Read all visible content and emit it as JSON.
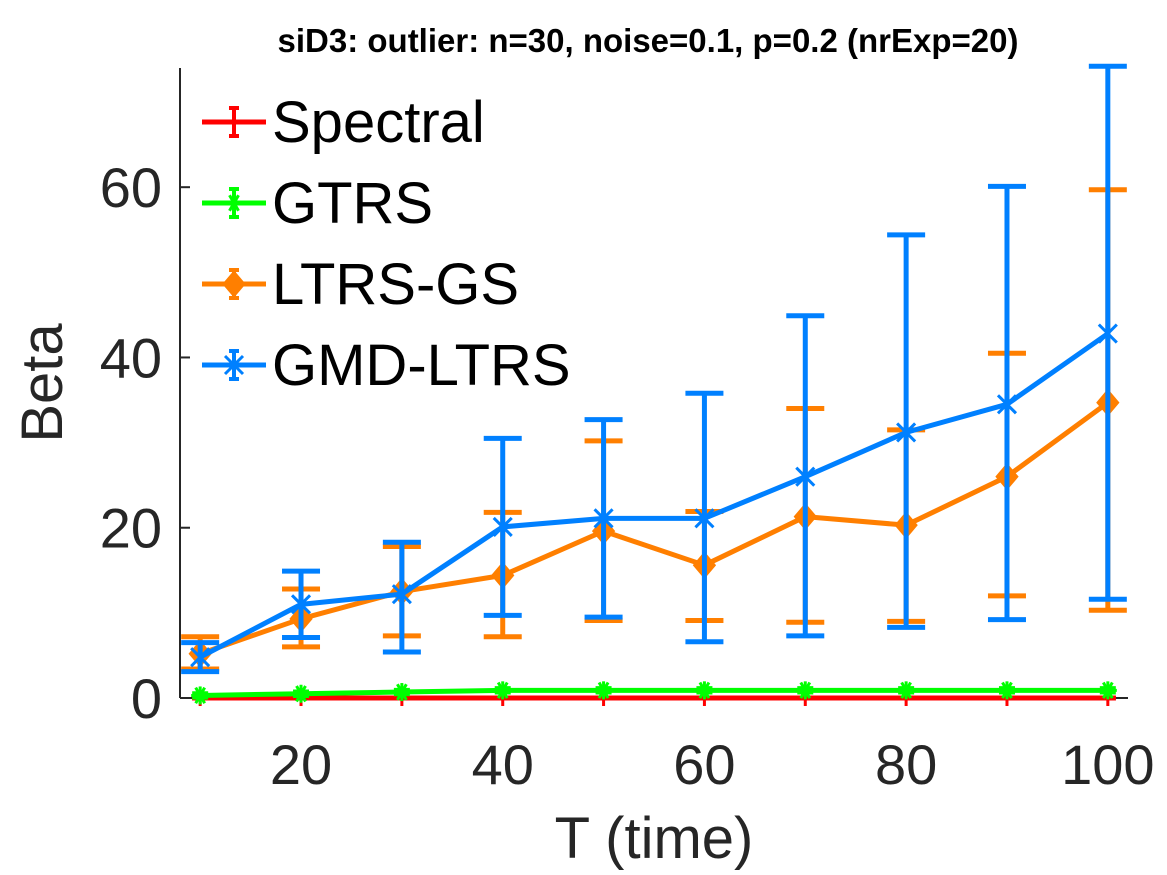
{
  "chart_data": {
    "type": "line",
    "title": "siD3: outlier: n=30, noise=0.1, p=0.2 (nrExp=20)",
    "xlabel": "T (time)",
    "ylabel": "Beta",
    "xlim": [
      8,
      102
    ],
    "ylim": [
      0,
      74
    ],
    "xticks": [
      20,
      40,
      60,
      80,
      100
    ],
    "yticks": [
      0,
      20,
      40,
      60
    ],
    "x": [
      10,
      20,
      30,
      40,
      50,
      60,
      70,
      80,
      90,
      100
    ],
    "grid": false,
    "legend_position": "top-left",
    "series": [
      {
        "name": "Spectral",
        "color": "#ff0000",
        "marker": "plus",
        "values": [
          0,
          0,
          0,
          0,
          0,
          0,
          0,
          0,
          0,
          0
        ],
        "lower": [
          0,
          0,
          0,
          0,
          0,
          0,
          0,
          0,
          0,
          0
        ],
        "upper": [
          0,
          0,
          0,
          0,
          0,
          0,
          0,
          0,
          0,
          0
        ]
      },
      {
        "name": "GTRS",
        "color": "#00ff00",
        "marker": "star",
        "values": [
          0.3,
          0.5,
          0.7,
          0.9,
          0.9,
          0.9,
          0.9,
          0.9,
          0.9,
          0.9
        ],
        "lower": [
          0.1,
          0.3,
          0.5,
          0.7,
          0.7,
          0.7,
          0.7,
          0.7,
          0.7,
          0.7
        ],
        "upper": [
          0.5,
          0.7,
          0.9,
          1.1,
          1.1,
          1.1,
          1.1,
          1.1,
          1.1,
          1.1
        ]
      },
      {
        "name": "LTRS-GS",
        "color": "#ff7f00",
        "marker": "diamond",
        "values": [
          5.2,
          9.3,
          12.5,
          14.4,
          19.6,
          15.6,
          21.3,
          20.3,
          26.0,
          34.7
        ],
        "lower": [
          3.4,
          6.0,
          7.3,
          7.2,
          9.1,
          9.1,
          8.9,
          9.0,
          12.0,
          10.3
        ],
        "upper": [
          7.2,
          12.8,
          17.8,
          21.8,
          30.2,
          21.9,
          34.0,
          31.5,
          40.5,
          59.7
        ]
      },
      {
        "name": "GMD-LTRS",
        "color": "#0080ff",
        "marker": "x-star",
        "values": [
          4.8,
          11.0,
          12.2,
          20.1,
          21.1,
          21.1,
          26.0,
          31.2,
          34.5,
          42.8
        ],
        "lower": [
          3.1,
          7.1,
          5.4,
          9.7,
          9.5,
          6.6,
          7.3,
          8.3,
          9.2,
          11.6
        ],
        "upper": [
          6.5,
          14.9,
          18.3,
          30.5,
          32.7,
          35.8,
          44.9,
          54.4,
          60.1,
          74.2
        ]
      }
    ]
  }
}
